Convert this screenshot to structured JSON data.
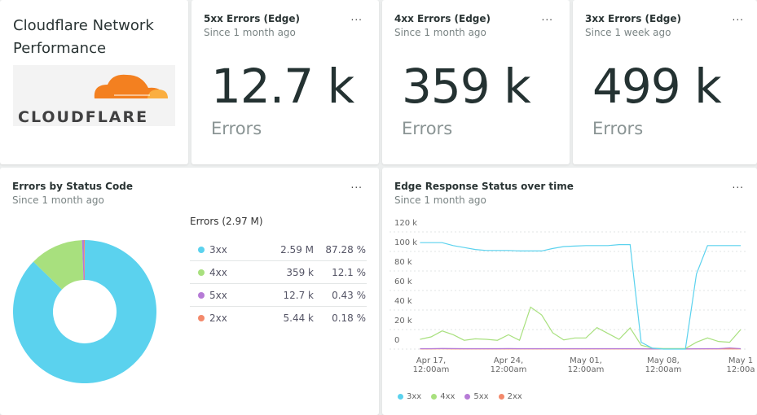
{
  "header": {
    "title": "Cloudflare Network Performance",
    "logo_text": "CLOUDFLARE"
  },
  "billboards": [
    {
      "title": "5xx Errors (Edge)",
      "subtitle": "Since 1 month ago",
      "value": "12.7 k",
      "unit": "Errors",
      "menu": "..."
    },
    {
      "title": "4xx Errors (Edge)",
      "subtitle": "Since 1 month ago",
      "value": "359 k",
      "unit": "Errors",
      "menu": "..."
    },
    {
      "title": "3xx Errors (Edge)",
      "subtitle": "Since 1 week ago",
      "value": "499 k",
      "unit": "Errors",
      "menu": "..."
    }
  ],
  "pie_panel": {
    "title": "Errors by Status Code",
    "subtitle": "Since 1 month ago",
    "menu": "...",
    "legend_header": "Errors (2.97 M)",
    "rows": [
      {
        "name": "3xx",
        "value": "2.59 M",
        "pct": "87.28 %"
      },
      {
        "name": "4xx",
        "value": "359 k",
        "pct": "12.1 %"
      },
      {
        "name": "5xx",
        "value": "12.7 k",
        "pct": "0.43 %"
      },
      {
        "name": "2xx",
        "value": "5.44 k",
        "pct": "0.18 %"
      }
    ]
  },
  "line_panel": {
    "title": "Edge Response Status over time",
    "subtitle": "Since 1 month ago",
    "menu": "..."
  },
  "colors": {
    "3xx": "#5bd2ee",
    "4xx": "#a8e07e",
    "5xx": "#b67bd6",
    "2xx": "#f3896b"
  },
  "chart_data": [
    {
      "type": "pie",
      "donut": true,
      "categories": [
        "3xx",
        "4xx",
        "5xx",
        "2xx"
      ],
      "values": [
        2590000,
        359000,
        12700,
        5440
      ],
      "percent": [
        87.28,
        12.1,
        0.43,
        0.18
      ]
    },
    {
      "type": "line",
      "ylim": [
        0,
        120000
      ],
      "yticks": [
        "0",
        "20 k",
        "40 k",
        "60 k",
        "80 k",
        "100 k",
        "120 k"
      ],
      "ytick_values": [
        0,
        20000,
        40000,
        60000,
        80000,
        100000,
        120000
      ],
      "xticks": [
        [
          "Apr 17,",
          "12:00am"
        ],
        [
          "Apr 24,",
          "12:00am"
        ],
        [
          "May 01,",
          "12:00am"
        ],
        [
          "May 08,",
          "12:00am"
        ],
        [
          "May 1",
          "12:00a"
        ]
      ],
      "xtick_dates": [
        "2023-04-17",
        "2023-04-24",
        "2023-05-01",
        "2023-05-08",
        "2023-05-15"
      ],
      "x_start": "2023-04-16",
      "x_step_days": 1,
      "grid": true,
      "legend": "bottom",
      "series": [
        {
          "name": "3xx",
          "values": [
            109000,
            109000,
            109000,
            106000,
            104000,
            102000,
            101000,
            101000,
            101000,
            100500,
            100500,
            100500,
            103000,
            105000,
            105500,
            106000,
            106000,
            106000,
            107000,
            107000,
            7000,
            1000,
            0,
            0,
            0,
            77000,
            106000,
            106000,
            106000,
            106000
          ]
        },
        {
          "name": "4xx",
          "values": [
            10000,
            12500,
            18600,
            14700,
            9000,
            10500,
            10000,
            9000,
            14700,
            9000,
            43000,
            35000,
            16700,
            9400,
            11400,
            11400,
            22000,
            16000,
            10000,
            21700,
            4000,
            1000,
            500,
            500,
            500,
            7000,
            11400,
            7800,
            7000,
            20000
          ]
        },
        {
          "name": "5xx",
          "values": [
            400,
            400,
            600,
            500,
            400,
            400,
            400,
            400,
            500,
            400,
            400,
            400,
            400,
            400,
            400,
            400,
            400,
            400,
            400,
            400,
            300,
            200,
            200,
            200,
            200,
            300,
            400,
            400,
            1200,
            400
          ]
        },
        {
          "name": "2xx",
          "values": [
            200,
            200,
            300,
            200,
            200,
            200,
            200,
            200,
            200,
            200,
            200,
            200,
            200,
            200,
            200,
            200,
            200,
            200,
            200,
            200,
            150,
            100,
            100,
            100,
            100,
            150,
            200,
            200,
            200,
            200
          ]
        }
      ]
    }
  ]
}
